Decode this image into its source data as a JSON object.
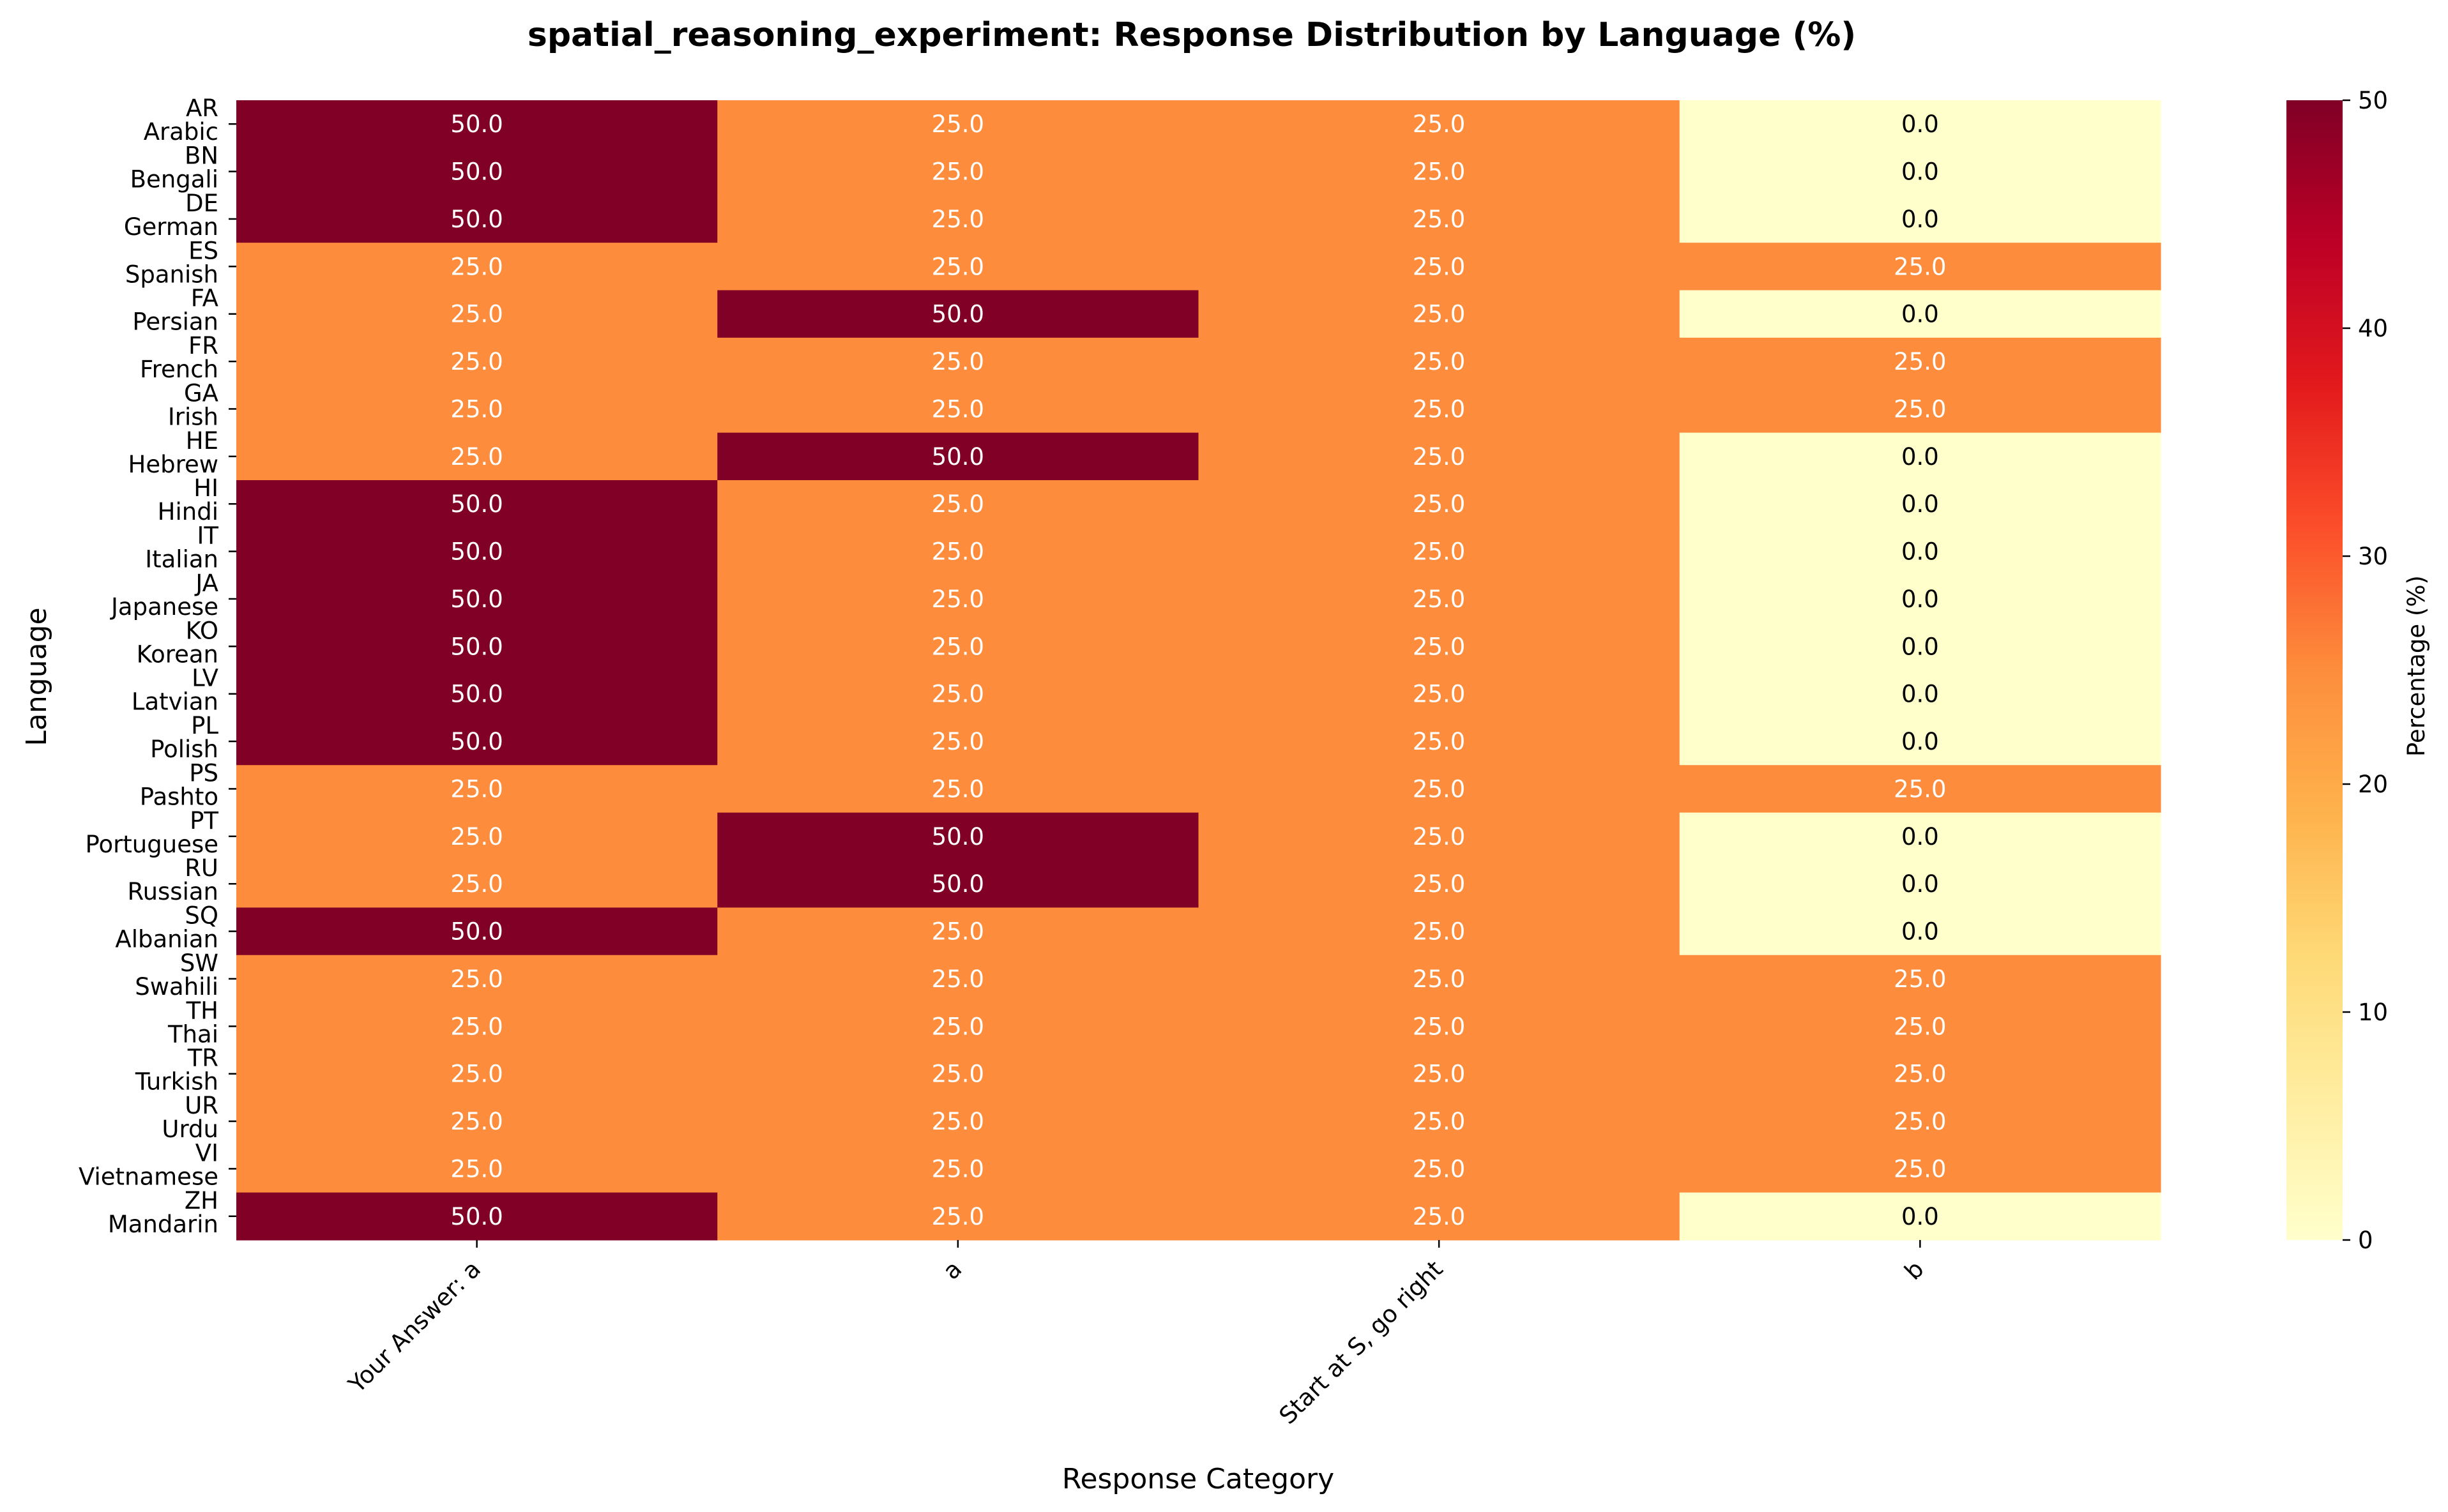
{
  "chart_data": {
    "type": "heatmap",
    "title": "spatial_reasoning_experiment: Response Distribution by Language (%)",
    "xlabel": "Response Category",
    "ylabel": "Language",
    "columns": [
      "Your Answer: a",
      "a",
      "Start at S, go right",
      "b"
    ],
    "rows": [
      {
        "code": "AR",
        "name": "Arabic",
        "values": [
          50.0,
          25.0,
          25.0,
          0.0
        ]
      },
      {
        "code": "BN",
        "name": "Bengali",
        "values": [
          50.0,
          25.0,
          25.0,
          0.0
        ]
      },
      {
        "code": "DE",
        "name": "German",
        "values": [
          50.0,
          25.0,
          25.0,
          0.0
        ]
      },
      {
        "code": "ES",
        "name": "Spanish",
        "values": [
          25.0,
          25.0,
          25.0,
          25.0
        ]
      },
      {
        "code": "FA",
        "name": "Persian",
        "values": [
          25.0,
          50.0,
          25.0,
          0.0
        ]
      },
      {
        "code": "FR",
        "name": "French",
        "values": [
          25.0,
          25.0,
          25.0,
          25.0
        ]
      },
      {
        "code": "GA",
        "name": "Irish",
        "values": [
          25.0,
          25.0,
          25.0,
          25.0
        ]
      },
      {
        "code": "HE",
        "name": "Hebrew",
        "values": [
          25.0,
          50.0,
          25.0,
          0.0
        ]
      },
      {
        "code": "HI",
        "name": "Hindi",
        "values": [
          50.0,
          25.0,
          25.0,
          0.0
        ]
      },
      {
        "code": "IT",
        "name": "Italian",
        "values": [
          50.0,
          25.0,
          25.0,
          0.0
        ]
      },
      {
        "code": "JA",
        "name": "Japanese",
        "values": [
          50.0,
          25.0,
          25.0,
          0.0
        ]
      },
      {
        "code": "KO",
        "name": "Korean",
        "values": [
          50.0,
          25.0,
          25.0,
          0.0
        ]
      },
      {
        "code": "LV",
        "name": "Latvian",
        "values": [
          50.0,
          25.0,
          25.0,
          0.0
        ]
      },
      {
        "code": "PL",
        "name": "Polish",
        "values": [
          50.0,
          25.0,
          25.0,
          0.0
        ]
      },
      {
        "code": "PS",
        "name": "Pashto",
        "values": [
          25.0,
          25.0,
          25.0,
          25.0
        ]
      },
      {
        "code": "PT",
        "name": "Portuguese",
        "values": [
          25.0,
          50.0,
          25.0,
          0.0
        ]
      },
      {
        "code": "RU",
        "name": "Russian",
        "values": [
          25.0,
          50.0,
          25.0,
          0.0
        ]
      },
      {
        "code": "SQ",
        "name": "Albanian",
        "values": [
          50.0,
          25.0,
          25.0,
          0.0
        ]
      },
      {
        "code": "SW",
        "name": "Swahili",
        "values": [
          25.0,
          25.0,
          25.0,
          25.0
        ]
      },
      {
        "code": "TH",
        "name": "Thai",
        "values": [
          25.0,
          25.0,
          25.0,
          25.0
        ]
      },
      {
        "code": "TR",
        "name": "Turkish",
        "values": [
          25.0,
          25.0,
          25.0,
          25.0
        ]
      },
      {
        "code": "UR",
        "name": "Urdu",
        "values": [
          25.0,
          25.0,
          25.0,
          25.0
        ]
      },
      {
        "code": "VI",
        "name": "Vietnamese",
        "values": [
          25.0,
          25.0,
          25.0,
          25.0
        ]
      },
      {
        "code": "ZH",
        "name": "Mandarin",
        "values": [
          50.0,
          25.0,
          25.0,
          0.0
        ]
      }
    ],
    "colorbar": {
      "label": "Percentage (%)",
      "range": [
        0,
        50
      ],
      "ticks": [
        0,
        10,
        20,
        30,
        40,
        50
      ],
      "colormap": "YlOrRd",
      "colors": [
        "#ffffcc",
        "#ffeda0",
        "#fed976",
        "#feb24c",
        "#fd8d3c",
        "#fc4e2a",
        "#e31a1c",
        "#bd0026",
        "#800026"
      ]
    },
    "value_format": "one decimal",
    "grid": false
  }
}
